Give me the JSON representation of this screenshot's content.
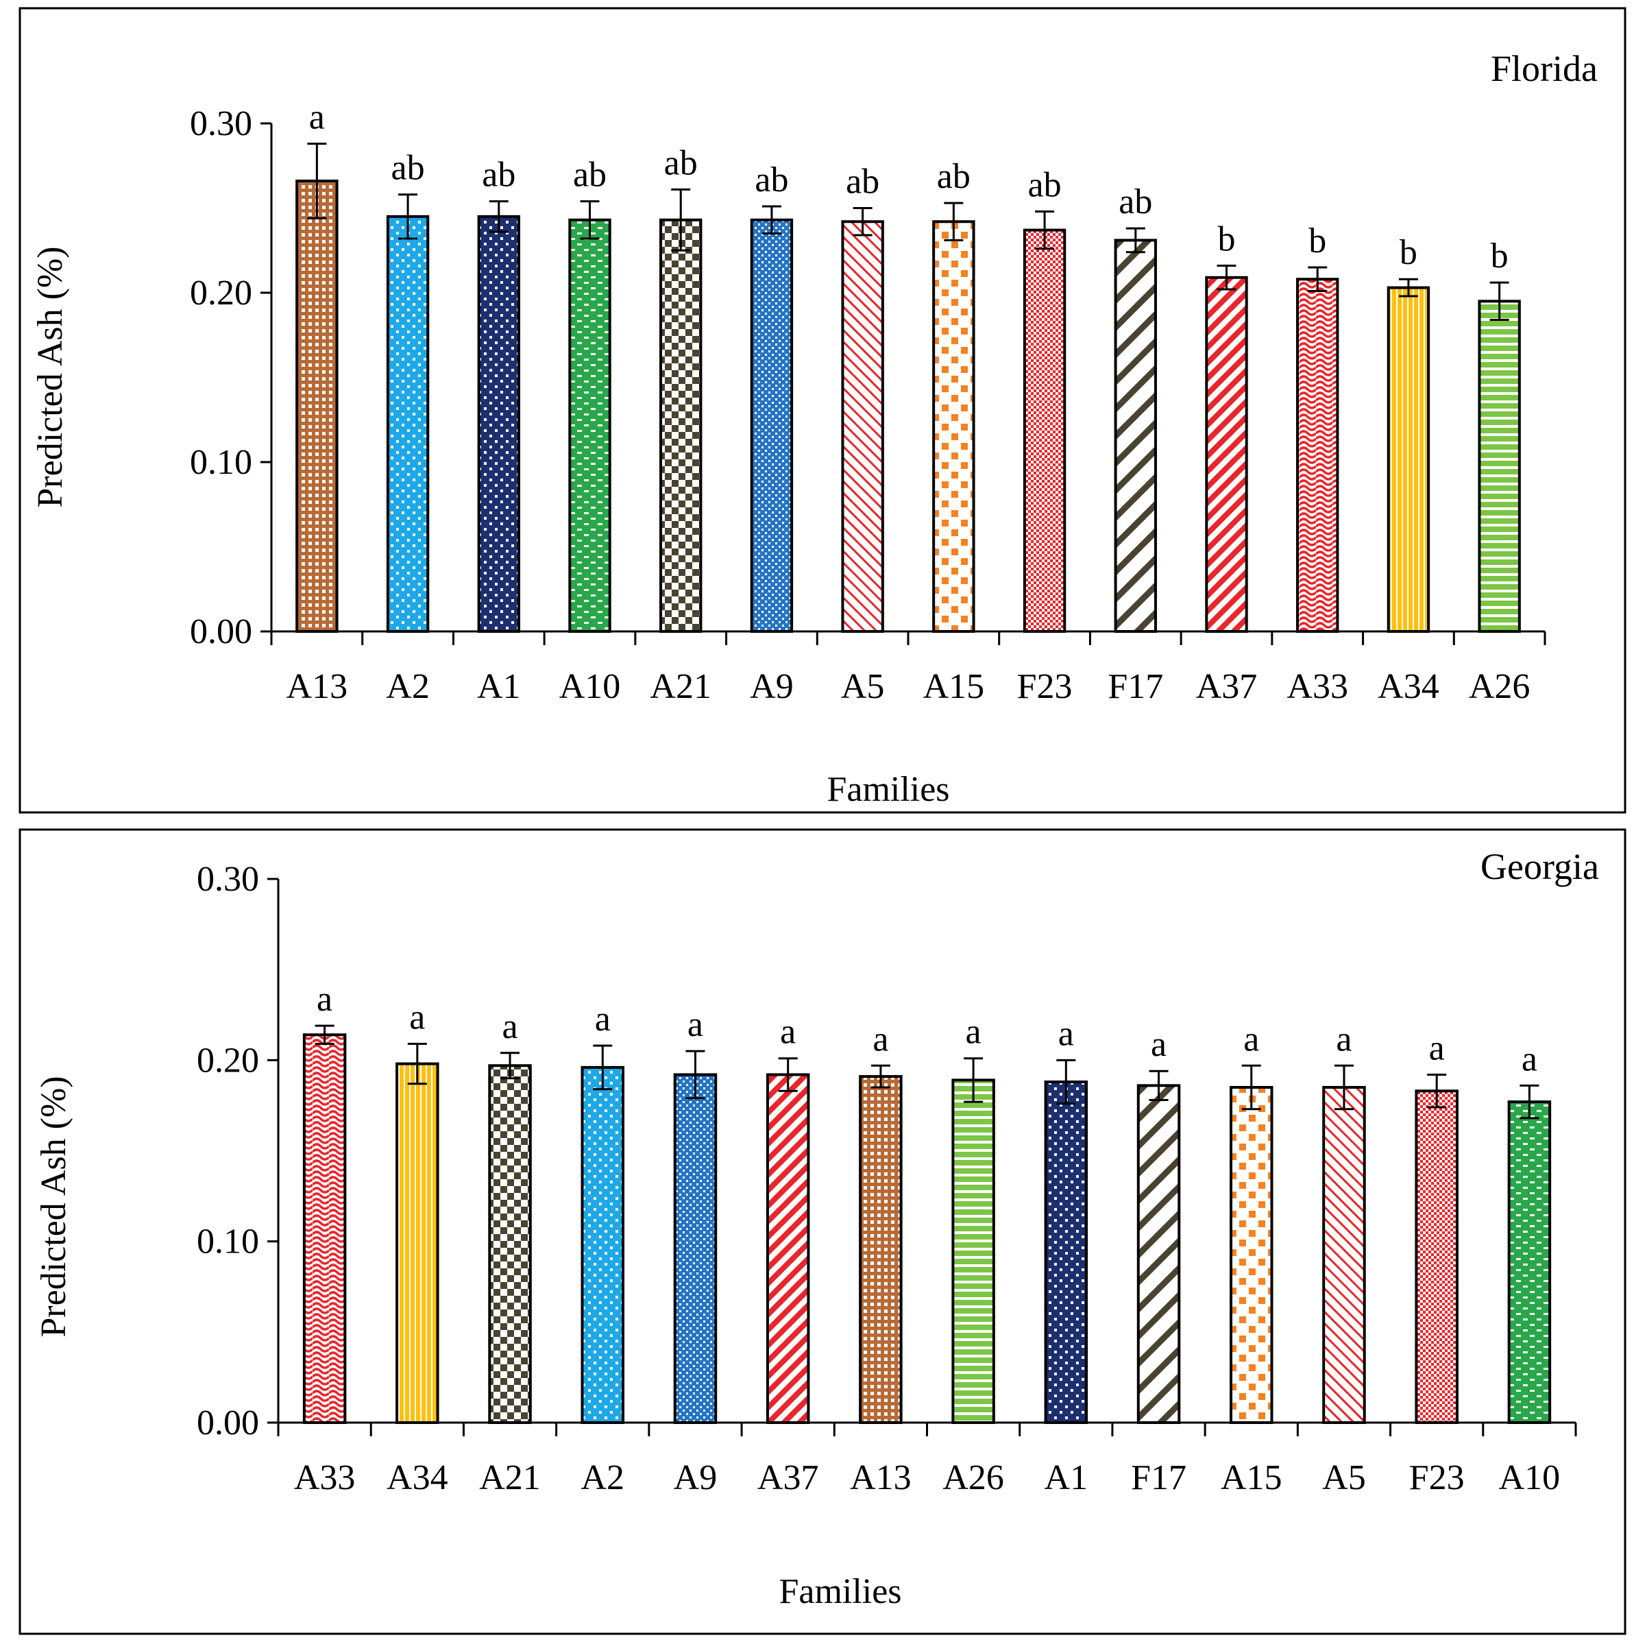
{
  "colors": {
    "brown": "#b86a36",
    "sky": "#1fa8e8",
    "navy": "#1c2f6e",
    "green": "#2aa64b",
    "olive": "#4a4331",
    "blue": "#2574c4",
    "red": "#e8262b",
    "orange": "#f5821f",
    "yellow": "#fdc00f",
    "lightgreen": "#7cc546"
  },
  "family_styles": {
    "A13": {
      "color": "brown",
      "pattern": "grid"
    },
    "A2": {
      "color": "sky",
      "pattern": "dots"
    },
    "A1": {
      "color": "navy",
      "pattern": "dots"
    },
    "A10": {
      "color": "green",
      "pattern": "dashes"
    },
    "A21": {
      "color": "olive",
      "pattern": "checker"
    },
    "A9": {
      "color": "blue",
      "pattern": "smallcheck"
    },
    "A5": {
      "color": "red",
      "pattern": "diagonal-thin"
    },
    "A15": {
      "color": "orange",
      "pattern": "confetti"
    },
    "F23": {
      "color": "red",
      "pattern": "grid-fine"
    },
    "F17": {
      "color": "olive",
      "pattern": "diagonal-wide"
    },
    "A37": {
      "color": "red",
      "pattern": "diagonal-bold"
    },
    "A33": {
      "color": "red",
      "pattern": "wave"
    },
    "A34": {
      "color": "yellow",
      "pattern": "vertical"
    },
    "A26": {
      "color": "lightgreen",
      "pattern": "horizontal"
    }
  },
  "chart_data": [
    {
      "type": "bar",
      "title": "Florida",
      "xlabel": "Families",
      "ylabel": "Predicted Ash (%)",
      "ylim": [
        0,
        0.3
      ],
      "yticks": [
        "0.00",
        "0.10",
        "0.20",
        "0.30"
      ],
      "categories": [
        "A13",
        "A2",
        "A1",
        "A10",
        "A21",
        "A9",
        "A5",
        "A15",
        "F23",
        "F17",
        "A37",
        "A33",
        "A34",
        "A26"
      ],
      "values": [
        0.266,
        0.245,
        0.245,
        0.243,
        0.243,
        0.243,
        0.242,
        0.242,
        0.237,
        0.231,
        0.209,
        0.208,
        0.203,
        0.195
      ],
      "errors": [
        0.022,
        0.013,
        0.009,
        0.011,
        0.018,
        0.008,
        0.008,
        0.011,
        0.011,
        0.007,
        0.007,
        0.007,
        0.005,
        0.011
      ],
      "letters": [
        "a",
        "ab",
        "ab",
        "ab",
        "ab",
        "ab",
        "ab",
        "ab",
        "ab",
        "ab",
        "b",
        "b",
        "b",
        "b"
      ]
    },
    {
      "type": "bar",
      "title": "Georgia",
      "xlabel": "Families",
      "ylabel": "Predicted Ash (%)",
      "ylim": [
        0,
        0.3
      ],
      "yticks": [
        "0.00",
        "0.10",
        "0.20",
        "0.30"
      ],
      "categories": [
        "A33",
        "A34",
        "A21",
        "A2",
        "A9",
        "A37",
        "A13",
        "A26",
        "A1",
        "F17",
        "A15",
        "A5",
        "F23",
        "A10"
      ],
      "values": [
        0.214,
        0.198,
        0.197,
        0.196,
        0.192,
        0.192,
        0.191,
        0.189,
        0.188,
        0.186,
        0.185,
        0.185,
        0.183,
        0.177
      ],
      "errors": [
        0.005,
        0.011,
        0.007,
        0.012,
        0.013,
        0.009,
        0.006,
        0.012,
        0.012,
        0.008,
        0.012,
        0.012,
        0.009,
        0.009
      ],
      "letters": [
        "a",
        "a",
        "a",
        "a",
        "a",
        "a",
        "a",
        "a",
        "a",
        "a",
        "a",
        "a",
        "a",
        "a"
      ]
    }
  ]
}
